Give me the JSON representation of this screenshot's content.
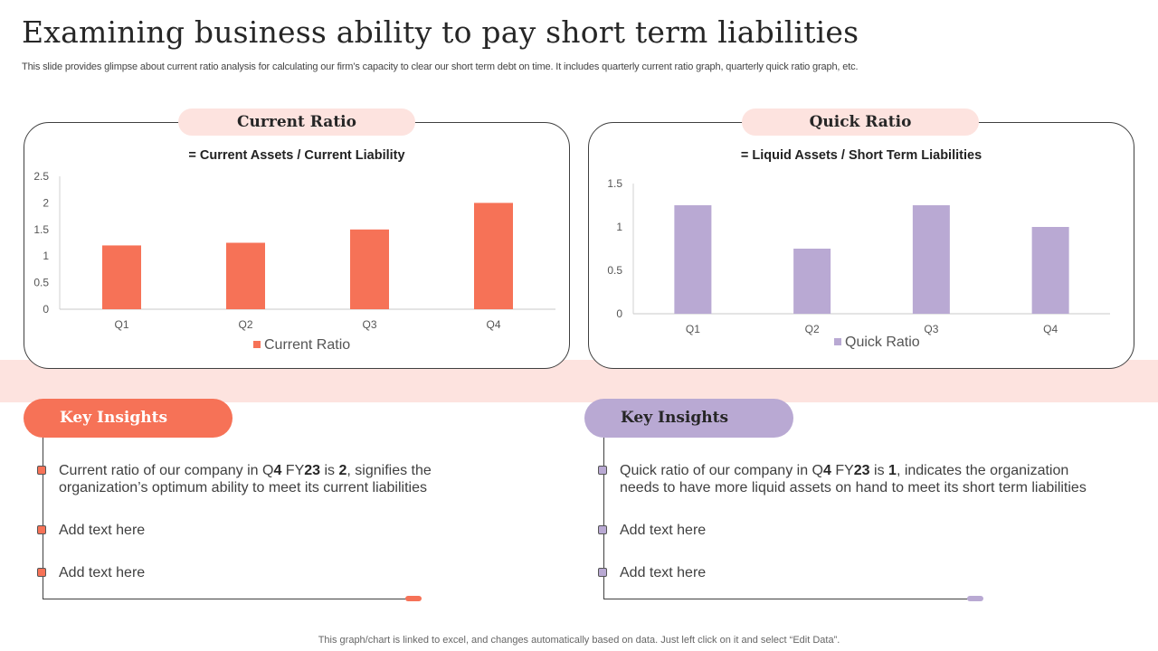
{
  "header": {
    "title": "Examining business ability to pay short term liabilities",
    "subtitle": "This slide provides glimpse about current ratio analysis for calculating our firm’s capacity to clear our short term debt on time. It includes quarterly current ratio graph, quarterly quick ratio graph, etc."
  },
  "colors": {
    "accent_orange": "#f67257",
    "accent_purple": "#b9a9d3",
    "band": "#fde3df"
  },
  "current_panel": {
    "heading": "Current Ratio",
    "formula": "= Current Assets  /  Current Liability"
  },
  "quick_panel": {
    "heading": "Quick Ratio",
    "formula": "= Liquid Assets  /  Short Term Liabilities"
  },
  "chart_data": [
    {
      "type": "bar",
      "title": "= Current Assets / Current Liability",
      "categories": [
        "Q1",
        "Q2",
        "Q3",
        "Q4"
      ],
      "series": [
        {
          "name": "Current Ratio",
          "values": [
            1.2,
            1.25,
            1.5,
            2.0
          ],
          "color": "#f67257"
        }
      ],
      "ylim": [
        0,
        2.5
      ],
      "yticks": [
        0,
        0.5,
        1,
        1.5,
        2,
        2.5
      ],
      "ytick_labels": [
        "0",
        "0.5",
        "1",
        "1.5",
        "2",
        "2.5"
      ],
      "xlabel": "",
      "ylabel": "",
      "legend": "bottom",
      "grid": false
    },
    {
      "type": "bar",
      "title": "= Liquid Assets / Short Term Liabilities",
      "categories": [
        "Q1",
        "Q2",
        "Q3",
        "Q4"
      ],
      "series": [
        {
          "name": "Quick Ratio",
          "values": [
            1.25,
            0.75,
            1.25,
            1.0
          ],
          "color": "#b9a9d3"
        }
      ],
      "ylim": [
        0,
        1.5
      ],
      "yticks": [
        0,
        0.5,
        1,
        1.5
      ],
      "ytick_labels": [
        "0",
        "0.5",
        "1",
        "1.5"
      ],
      "xlabel": "",
      "ylabel": "",
      "legend": "bottom",
      "grid": false
    }
  ],
  "insights_left": {
    "heading": "Key Insights",
    "first": {
      "p1": "Current ratio of our company in Q",
      "b1": "4",
      "p2": " FY",
      "b2": "23",
      "p3": " is ",
      "b3": "2",
      "p4": ", signifies the organization’s optimum ability to meet its current liabilities"
    },
    "items": [
      "Add text here",
      "Add text here"
    ]
  },
  "insights_right": {
    "heading": "Key Insights",
    "first": {
      "p1": "Quick ratio of our company in Q",
      "b1": "4",
      "p2": " FY",
      "b2": "23",
      "p3": " is ",
      "b3": "1",
      "p4": ", indicates the organization needs to have more liquid assets on hand to meet its short term liabilities"
    },
    "items": [
      "Add text here",
      "Add text here"
    ]
  },
  "footer": "This graph/chart is linked to excel,  and changes automatically based on data. Just left click on it and select “Edit Data”."
}
